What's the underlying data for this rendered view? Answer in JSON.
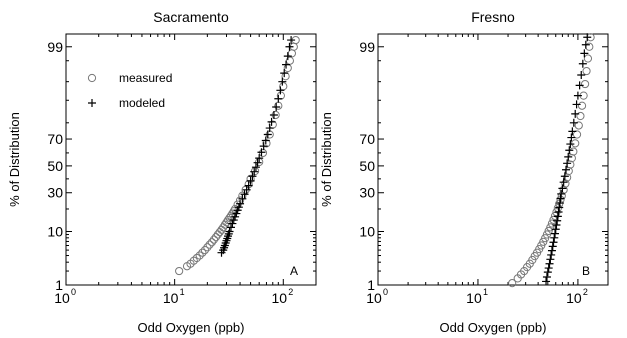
{
  "chart_data": [
    {
      "type": "scatter",
      "title": "Sacramento",
      "xlabel": "Odd Oxygen (ppb)",
      "ylabel": "% of Distribution",
      "x_scale": "log",
      "y_scale": "probability",
      "xlim": [
        1,
        200
      ],
      "ylim": [
        1,
        99.5
      ],
      "x_ticks": [
        1,
        10,
        100
      ],
      "x_tick_labels": [
        {
          "base": "10",
          "exp": "0"
        },
        {
          "base": "10",
          "exp": "1"
        },
        {
          "base": "10",
          "exp": "2"
        }
      ],
      "y_ticks": [
        1,
        10,
        30,
        50,
        70,
        99
      ],
      "y_tick_labels": [
        "1",
        "10",
        "30",
        "50",
        "70",
        "99"
      ],
      "panel_letter": "A",
      "legend": {
        "placement": "top-left",
        "entries": [
          {
            "label": "measured",
            "marker": "circle"
          },
          {
            "label": "modeled",
            "marker": "plus"
          }
        ]
      },
      "series": [
        {
          "name": "measured",
          "marker": "circle",
          "color": "#777777",
          "points": [
            [
              11,
              2.0
            ],
            [
              13,
              2.5
            ],
            [
              14,
              2.8
            ],
            [
              15,
              3.2
            ],
            [
              16,
              3.6
            ],
            [
              17,
              4.0
            ],
            [
              18,
              4.5
            ],
            [
              19,
              5.0
            ],
            [
              20,
              5.6
            ],
            [
              21,
              6.2
            ],
            [
              22,
              6.8
            ],
            [
              23,
              7.5
            ],
            [
              24,
              8.2
            ],
            [
              25,
              9.0
            ],
            [
              26,
              9.8
            ],
            [
              27,
              10.6
            ],
            [
              28,
              11.5
            ],
            [
              29,
              12.5
            ],
            [
              30,
              13.5
            ],
            [
              31,
              14.5
            ],
            [
              32,
              15.5
            ],
            [
              33,
              16.5
            ],
            [
              34,
              17.6
            ],
            [
              35,
              18.8
            ],
            [
              36,
              20
            ],
            [
              38,
              22.5
            ],
            [
              40,
              25
            ],
            [
              42,
              28
            ],
            [
              45,
              32
            ],
            [
              48,
              36
            ],
            [
              50,
              40
            ],
            [
              55,
              46
            ],
            [
              60,
              53
            ],
            [
              65,
              60
            ],
            [
              70,
              67
            ],
            [
              75,
              73
            ],
            [
              80,
              79
            ],
            [
              85,
              84
            ],
            [
              90,
              88
            ],
            [
              95,
              91.5
            ],
            [
              100,
              94
            ],
            [
              105,
              96
            ],
            [
              110,
              97.2
            ],
            [
              115,
              98
            ],
            [
              120,
              98.6
            ],
            [
              125,
              99
            ],
            [
              130,
              99.3
            ]
          ]
        },
        {
          "name": "modeled",
          "marker": "plus",
          "color": "#000000",
          "points": [
            [
              27,
              4.5
            ],
            [
              28,
              5.0
            ],
            [
              28.5,
              5.5
            ],
            [
              29,
              6.0
            ],
            [
              29.5,
              6.6
            ],
            [
              30,
              7.2
            ],
            [
              30.5,
              7.8
            ],
            [
              31,
              8.5
            ],
            [
              31.5,
              9.2
            ],
            [
              32,
              10
            ],
            [
              33,
              11.5
            ],
            [
              34,
              13
            ],
            [
              35,
              14.5
            ],
            [
              36,
              16
            ],
            [
              37,
              17.6
            ],
            [
              38,
              19.3
            ],
            [
              39,
              21
            ],
            [
              40,
              23
            ],
            [
              42,
              26
            ],
            [
              44,
              29
            ],
            [
              46,
              32
            ],
            [
              48,
              35
            ],
            [
              50,
              38.5
            ],
            [
              52,
              42
            ],
            [
              54,
              45.5
            ],
            [
              56,
              49
            ],
            [
              58,
              52.5
            ],
            [
              60,
              56
            ],
            [
              63,
              60.5
            ],
            [
              66,
              65
            ],
            [
              69,
              69
            ],
            [
              72,
              73
            ],
            [
              75,
              77
            ],
            [
              78,
              80.5
            ],
            [
              82,
              84
            ],
            [
              86,
              87.5
            ],
            [
              90,
              90.5
            ],
            [
              94,
              93
            ],
            [
              98,
              95
            ],
            [
              102,
              96.5
            ],
            [
              106,
              97.6
            ],
            [
              110,
              98.4
            ],
            [
              114,
              99
            ],
            [
              118,
              99.3
            ]
          ]
        }
      ]
    },
    {
      "type": "scatter",
      "title": "Fresno",
      "xlabel": "Odd Oxygen (ppb)",
      "ylabel": "% of Distribution",
      "x_scale": "log",
      "y_scale": "probability",
      "xlim": [
        1,
        200
      ],
      "ylim": [
        1,
        99.5
      ],
      "x_ticks": [
        1,
        10,
        100
      ],
      "x_tick_labels": [
        {
          "base": "10",
          "exp": "0"
        },
        {
          "base": "10",
          "exp": "1"
        },
        {
          "base": "10",
          "exp": "2"
        }
      ],
      "y_ticks": [
        1,
        10,
        30,
        50,
        70,
        99
      ],
      "y_tick_labels": [
        "1",
        "10",
        "30",
        "50",
        "70",
        "99"
      ],
      "panel_letter": "B",
      "series": [
        {
          "name": "measured",
          "marker": "circle",
          "color": "#777777",
          "points": [
            [
              22,
              1.1
            ],
            [
              25,
              1.4
            ],
            [
              27,
              1.7
            ],
            [
              29,
              2.0
            ],
            [
              31,
              2.4
            ],
            [
              33,
              2.8
            ],
            [
              35,
              3.3
            ],
            [
              37,
              3.9
            ],
            [
              39,
              4.5
            ],
            [
              41,
              5.2
            ],
            [
              43,
              6.0
            ],
            [
              45,
              6.9
            ],
            [
              47,
              7.9
            ],
            [
              49,
              9.0
            ],
            [
              51,
              10.2
            ],
            [
              53,
              11.5
            ],
            [
              55,
              13
            ],
            [
              57,
              14.6
            ],
            [
              59,
              16.4
            ],
            [
              61,
              18.3
            ],
            [
              63,
              20.5
            ],
            [
              65,
              23
            ],
            [
              67,
              25.5
            ],
            [
              69,
              28
            ],
            [
              72,
              32
            ],
            [
              75,
              36.5
            ],
            [
              78,
              41
            ],
            [
              81,
              46
            ],
            [
              84,
              51
            ],
            [
              87,
              56
            ],
            [
              90,
              61
            ],
            [
              94,
              67
            ],
            [
              98,
              73
            ],
            [
              102,
              78.5
            ],
            [
              106,
              83.5
            ],
            [
              110,
              88
            ],
            [
              114,
              91.5
            ],
            [
              118,
              94.5
            ],
            [
              122,
              96.8
            ],
            [
              126,
              98.2
            ],
            [
              130,
              99
            ],
            [
              134,
              99.4
            ]
          ]
        },
        {
          "name": "modeled",
          "marker": "plus",
          "color": "#000000",
          "points": [
            [
              48,
              1.2
            ],
            [
              49,
              1.5
            ],
            [
              50,
              1.9
            ],
            [
              51,
              2.3
            ],
            [
              52,
              2.8
            ],
            [
              53,
              3.4
            ],
            [
              54,
              4.1
            ],
            [
              55,
              4.9
            ],
            [
              56,
              5.8
            ],
            [
              57,
              6.8
            ],
            [
              58,
              8.0
            ],
            [
              59,
              9.3
            ],
            [
              60,
              10.8
            ],
            [
              61,
              12.4
            ],
            [
              62,
              14.2
            ],
            [
              63,
              16.2
            ],
            [
              64,
              18.4
            ],
            [
              65,
              20.8
            ],
            [
              66,
              23.4
            ],
            [
              67,
              26.2
            ],
            [
              68,
              29.2
            ],
            [
              70,
              33
            ],
            [
              72,
              37.5
            ],
            [
              74,
              42
            ],
            [
              76,
              47
            ],
            [
              78,
              52
            ],
            [
              80,
              57
            ],
            [
              82,
              62
            ],
            [
              84,
              66.5
            ],
            [
              86,
              71
            ],
            [
              88,
              75
            ],
            [
              91,
              80
            ],
            [
              94,
              84.5
            ],
            [
              97,
              88.5
            ],
            [
              100,
              91.5
            ],
            [
              104,
              94.2
            ],
            [
              108,
              96.2
            ],
            [
              112,
              97.7
            ],
            [
              116,
              98.6
            ],
            [
              120,
              99.1
            ],
            [
              124,
              99.4
            ]
          ]
        }
      ]
    }
  ]
}
